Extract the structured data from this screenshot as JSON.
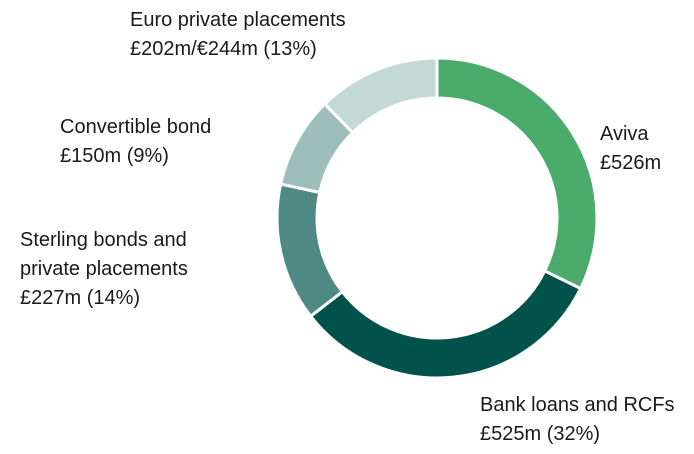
{
  "chart_data": {
    "type": "donut",
    "categories": [
      "Aviva",
      "Bank loans and RCFs",
      "Sterling bonds and private placements",
      "Convertible bond",
      "Euro private placements"
    ],
    "values": [
      526,
      525,
      227,
      150,
      202
    ],
    "value_labels": [
      "£526m",
      "£525m (32%)",
      "£227m (14%)",
      "£150m (9%)",
      "£202m/€244m (13%)"
    ],
    "colors": [
      "#4aab6b",
      "#00524b",
      "#4e8984",
      "#9dbdb9",
      "#c4d9d6"
    ]
  }
}
